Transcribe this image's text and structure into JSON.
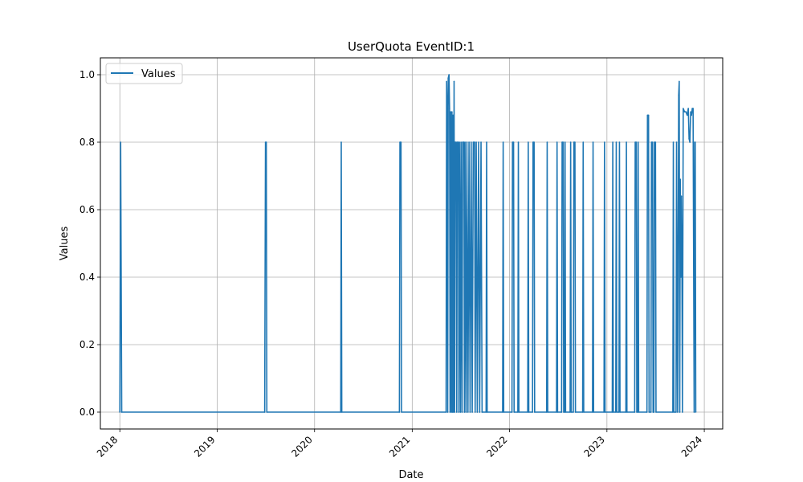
{
  "chart_data": {
    "type": "line",
    "title": "UserQuota EventID:1",
    "xlabel": "Date",
    "ylabel": "Values",
    "x_ticks": [
      "2018",
      "2019",
      "2020",
      "2021",
      "2022",
      "2023",
      "2024"
    ],
    "y_ticks": [
      "0.0",
      "0.2",
      "0.4",
      "0.6",
      "0.8",
      "1.0"
    ],
    "xlim": [
      "2017-10-20",
      "2024-03-10"
    ],
    "ylim": [
      -0.05,
      1.05
    ],
    "grid": true,
    "legend_position": "top-left",
    "series": [
      {
        "name": "Values",
        "color": "#1f77b4",
        "points": [
          [
            "2018-01-01",
            0.0
          ],
          [
            "2018-01-04",
            0.8
          ],
          [
            "2018-01-08",
            0.0
          ],
          [
            "2019-06-28",
            0.0
          ],
          [
            "2019-07-01",
            0.8
          ],
          [
            "2019-07-04",
            0.8
          ],
          [
            "2019-07-06",
            0.0
          ],
          [
            "2020-04-08",
            0.0
          ],
          [
            "2020-04-10",
            0.8
          ],
          [
            "2020-04-12",
            0.0
          ],
          [
            "2020-11-14",
            0.0
          ],
          [
            "2020-11-16",
            0.8
          ],
          [
            "2020-11-20",
            0.8
          ],
          [
            "2020-11-22",
            0.0
          ],
          [
            "2021-05-08",
            0.0
          ],
          [
            "2021-05-10",
            0.98
          ],
          [
            "2021-05-12",
            0.9
          ],
          [
            "2021-05-14",
            0.0
          ],
          [
            "2021-05-16",
            0.99
          ],
          [
            "2021-05-19",
            1.0
          ],
          [
            "2021-05-21",
            0.9
          ],
          [
            "2021-05-23",
            0.0
          ],
          [
            "2021-05-25",
            0.89
          ],
          [
            "2021-05-28",
            0.0
          ],
          [
            "2021-05-30",
            0.89
          ],
          [
            "2021-06-01",
            0.0
          ],
          [
            "2021-06-03",
            0.88
          ],
          [
            "2021-06-05",
            0.0
          ],
          [
            "2021-06-07",
            0.98
          ],
          [
            "2021-06-09",
            0.0
          ],
          [
            "2021-06-11",
            0.8
          ],
          [
            "2021-06-15",
            0.8
          ],
          [
            "2021-06-17",
            0.0
          ],
          [
            "2021-06-19",
            0.8
          ],
          [
            "2021-06-23",
            0.8
          ],
          [
            "2021-06-25",
            0.0
          ],
          [
            "2021-06-27",
            0.8
          ],
          [
            "2021-07-01",
            0.0
          ],
          [
            "2021-07-03",
            0.8
          ],
          [
            "2021-07-07",
            0.0
          ],
          [
            "2021-07-09",
            0.8
          ],
          [
            "2021-07-14",
            0.8
          ],
          [
            "2021-07-16",
            0.0
          ],
          [
            "2021-07-18",
            0.8
          ],
          [
            "2021-07-22",
            0.0
          ],
          [
            "2021-07-25",
            0.8
          ],
          [
            "2021-07-29",
            0.0
          ],
          [
            "2021-08-02",
            0.8
          ],
          [
            "2021-08-06",
            0.0
          ],
          [
            "2021-08-10",
            0.8
          ],
          [
            "2021-08-14",
            0.0
          ],
          [
            "2021-08-18",
            0.8
          ],
          [
            "2021-08-23",
            0.8
          ],
          [
            "2021-08-25",
            0.0
          ],
          [
            "2021-08-29",
            0.8
          ],
          [
            "2021-09-02",
            0.0
          ],
          [
            "2021-09-07",
            0.8
          ],
          [
            "2021-09-11",
            0.0
          ],
          [
            "2021-09-16",
            0.8
          ],
          [
            "2021-09-20",
            0.0
          ],
          [
            "2021-10-05",
            0.0
          ],
          [
            "2021-10-07",
            0.8
          ],
          [
            "2021-10-09",
            0.0
          ],
          [
            "2021-12-06",
            0.0
          ],
          [
            "2021-12-08",
            0.8
          ],
          [
            "2021-12-10",
            0.0
          ],
          [
            "2022-01-10",
            0.0
          ],
          [
            "2022-01-12",
            0.8
          ],
          [
            "2022-01-16",
            0.8
          ],
          [
            "2022-01-18",
            0.0
          ],
          [
            "2022-02-01",
            0.0
          ],
          [
            "2022-02-03",
            0.8
          ],
          [
            "2022-02-05",
            0.0
          ],
          [
            "2022-03-10",
            0.0
          ],
          [
            "2022-03-12",
            0.8
          ],
          [
            "2022-03-14",
            0.0
          ],
          [
            "2022-03-28",
            0.0
          ],
          [
            "2022-03-30",
            0.8
          ],
          [
            "2022-04-03",
            0.8
          ],
          [
            "2022-04-05",
            0.0
          ],
          [
            "2022-05-20",
            0.0
          ],
          [
            "2022-05-22",
            0.8
          ],
          [
            "2022-05-24",
            0.0
          ],
          [
            "2022-06-26",
            0.0
          ],
          [
            "2022-06-28",
            0.8
          ],
          [
            "2022-06-30",
            0.0
          ],
          [
            "2022-07-15",
            0.0
          ],
          [
            "2022-07-17",
            0.8
          ],
          [
            "2022-07-21",
            0.8
          ],
          [
            "2022-07-23",
            0.0
          ],
          [
            "2022-07-26",
            0.0
          ],
          [
            "2022-07-28",
            0.8
          ],
          [
            "2022-07-30",
            0.0
          ],
          [
            "2022-08-16",
            0.0
          ],
          [
            "2022-08-18",
            0.8
          ],
          [
            "2022-08-20",
            0.0
          ],
          [
            "2022-08-28",
            0.0
          ],
          [
            "2022-08-30",
            0.8
          ],
          [
            "2022-09-03",
            0.8
          ],
          [
            "2022-09-05",
            0.0
          ],
          [
            "2022-10-02",
            0.0
          ],
          [
            "2022-10-04",
            0.8
          ],
          [
            "2022-10-06",
            0.0
          ],
          [
            "2022-11-08",
            0.0
          ],
          [
            "2022-11-10",
            0.8
          ],
          [
            "2022-11-12",
            0.0
          ],
          [
            "2022-12-21",
            0.0
          ],
          [
            "2022-12-23",
            0.8
          ],
          [
            "2022-12-25",
            0.0
          ],
          [
            "2023-01-21",
            0.0
          ],
          [
            "2023-01-23",
            0.8
          ],
          [
            "2023-01-25",
            0.0
          ],
          [
            "2023-02-03",
            0.0
          ],
          [
            "2023-02-05",
            0.8
          ],
          [
            "2023-02-07",
            0.0
          ],
          [
            "2023-02-15",
            0.0
          ],
          [
            "2023-02-17",
            0.8
          ],
          [
            "2023-02-19",
            0.0
          ],
          [
            "2023-03-13",
            0.0
          ],
          [
            "2023-03-15",
            0.8
          ],
          [
            "2023-03-17",
            0.0
          ],
          [
            "2023-04-15",
            0.0
          ],
          [
            "2023-04-17",
            0.8
          ],
          [
            "2023-04-21",
            0.8
          ],
          [
            "2023-04-23",
            0.0
          ],
          [
            "2023-04-26",
            0.0
          ],
          [
            "2023-04-28",
            0.8
          ],
          [
            "2023-04-30",
            0.0
          ],
          [
            "2023-05-31",
            0.0
          ],
          [
            "2023-06-02",
            0.88
          ],
          [
            "2023-06-06",
            0.88
          ],
          [
            "2023-06-08",
            0.0
          ],
          [
            "2023-06-15",
            0.0
          ],
          [
            "2023-06-17",
            0.8
          ],
          [
            "2023-06-21",
            0.8
          ],
          [
            "2023-06-23",
            0.0
          ],
          [
            "2023-06-26",
            0.0
          ],
          [
            "2023-06-28",
            0.8
          ],
          [
            "2023-07-02",
            0.8
          ],
          [
            "2023-07-04",
            0.0
          ],
          [
            "2023-09-05",
            0.0
          ],
          [
            "2023-09-07",
            0.8
          ],
          [
            "2023-09-09",
            0.0
          ],
          [
            "2023-09-17",
            0.0
          ],
          [
            "2023-09-19",
            0.8
          ],
          [
            "2023-09-23",
            0.0
          ],
          [
            "2023-09-27",
            0.94
          ],
          [
            "2023-09-29",
            0.98
          ],
          [
            "2023-10-01",
            0.0
          ],
          [
            "2023-10-03",
            0.69
          ],
          [
            "2023-10-05",
            0.4
          ],
          [
            "2023-10-07",
            0.64
          ],
          [
            "2023-10-09",
            0.47
          ],
          [
            "2023-10-11",
            0.0
          ],
          [
            "2023-10-14",
            0.9
          ],
          [
            "2023-10-19",
            0.89
          ],
          [
            "2023-10-24",
            0.89
          ],
          [
            "2023-10-29",
            0.88
          ],
          [
            "2023-11-02",
            0.9
          ],
          [
            "2023-11-05",
            0.81
          ],
          [
            "2023-11-08",
            0.8
          ],
          [
            "2023-11-11",
            0.89
          ],
          [
            "2023-11-14",
            0.88
          ],
          [
            "2023-11-17",
            0.9
          ],
          [
            "2023-11-20",
            0.9
          ],
          [
            "2023-11-24",
            0.0
          ],
          [
            "2023-11-26",
            0.8
          ],
          [
            "2023-11-28",
            0.8
          ],
          [
            "2023-11-30",
            0.0
          ]
        ]
      }
    ]
  }
}
